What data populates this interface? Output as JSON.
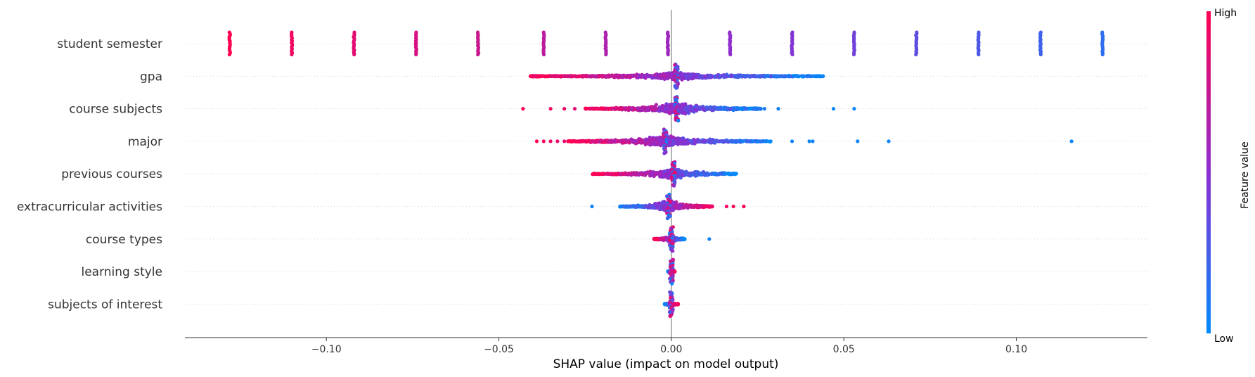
{
  "chart_data": {
    "type": "beeswarm",
    "xlabel": "SHAP value (impact on model output)",
    "xlim": [
      -0.141,
      0.138
    ],
    "x_ticks": [
      -0.1,
      -0.05,
      0.0,
      0.05,
      0.1
    ],
    "x_tick_labels": [
      "−0.10",
      "−0.05",
      "0.00",
      "0.05",
      "0.10"
    ],
    "features": [
      {
        "name": "student semester",
        "kind": "discrete",
        "points": [
          [
            -0.128,
            1.0
          ],
          [
            -0.11,
            0.94
          ],
          [
            -0.092,
            0.88
          ],
          [
            -0.074,
            0.82
          ],
          [
            -0.056,
            0.76
          ],
          [
            -0.037,
            0.7
          ],
          [
            -0.019,
            0.64
          ],
          [
            -0.001,
            0.58
          ],
          [
            0.017,
            0.52
          ],
          [
            0.035,
            0.46
          ],
          [
            0.053,
            0.4
          ],
          [
            0.071,
            0.34
          ],
          [
            0.089,
            0.28
          ],
          [
            0.107,
            0.22
          ],
          [
            0.125,
            0.16
          ]
        ]
      },
      {
        "name": "gpa",
        "kind": "dense",
        "min": -0.041,
        "max": 0.044,
        "spread": 0.55,
        "corr": -1,
        "stem": 0.0015,
        "outliers": []
      },
      {
        "name": "course subjects",
        "kind": "dense",
        "min": -0.025,
        "max": 0.026,
        "spread": 1.0,
        "corr": -1,
        "stem": 0.0015,
        "outliers": [
          [
            -0.043,
            1.0
          ],
          [
            -0.035,
            0.95
          ],
          [
            -0.031,
            0.92
          ],
          [
            -0.028,
            0.88
          ],
          [
            0.027,
            0.08
          ],
          [
            0.031,
            0.06
          ],
          [
            0.047,
            0.02
          ],
          [
            0.053,
            0.02
          ]
        ]
      },
      {
        "name": "major",
        "kind": "dense",
        "min": -0.03,
        "max": 0.029,
        "spread": 0.9,
        "corr": -1,
        "stem": -0.0018,
        "outliers": [
          [
            -0.039,
            1.0
          ],
          [
            -0.037,
            0.95
          ],
          [
            -0.035,
            0.92
          ],
          [
            -0.033,
            0.9
          ],
          [
            -0.031,
            0.88
          ],
          [
            0.035,
            0.05
          ],
          [
            0.04,
            0.04
          ],
          [
            0.041,
            0.04
          ],
          [
            0.054,
            0.03
          ],
          [
            0.063,
            0.03
          ],
          [
            0.116,
            0.02
          ]
        ]
      },
      {
        "name": "previous courses",
        "kind": "dense",
        "min": -0.023,
        "max": 0.019,
        "spread": 0.85,
        "corr": -1,
        "stem": 0.0005,
        "outliers": []
      },
      {
        "name": "extracurricular activities",
        "kind": "dense",
        "min": -0.015,
        "max": 0.012,
        "spread": 1.0,
        "corr": 1,
        "stem": -0.0008,
        "outliers": [
          [
            -0.023,
            0.05
          ],
          [
            0.016,
            0.95
          ],
          [
            0.018,
            0.97
          ],
          [
            0.021,
            1.0
          ]
        ]
      },
      {
        "name": "course types",
        "kind": "dense",
        "min": -0.005,
        "max": 0.004,
        "spread": 0.7,
        "corr": -1,
        "stem": 0.0,
        "outliers": [
          [
            0.011,
            0.05
          ]
        ]
      },
      {
        "name": "learning style",
        "kind": "dense",
        "min": -0.001,
        "max": 0.001,
        "spread": 0.4,
        "corr": 1,
        "stem": 0.0,
        "outliers": []
      },
      {
        "name": "subjects of interest",
        "kind": "dense",
        "min": -0.002,
        "max": 0.002,
        "spread": 0.5,
        "corr": 1,
        "stem": 0.0,
        "outliers": []
      }
    ],
    "colorbar": {
      "label": "Feature value",
      "high_label": "High",
      "low_label": "Low"
    },
    "colors": {
      "high": "#ff0052",
      "mid": "#8c2ed2",
      "low": "#008bfb",
      "axis": "#333333",
      "zero_line": "#999999",
      "grid": "#cccccc"
    }
  }
}
